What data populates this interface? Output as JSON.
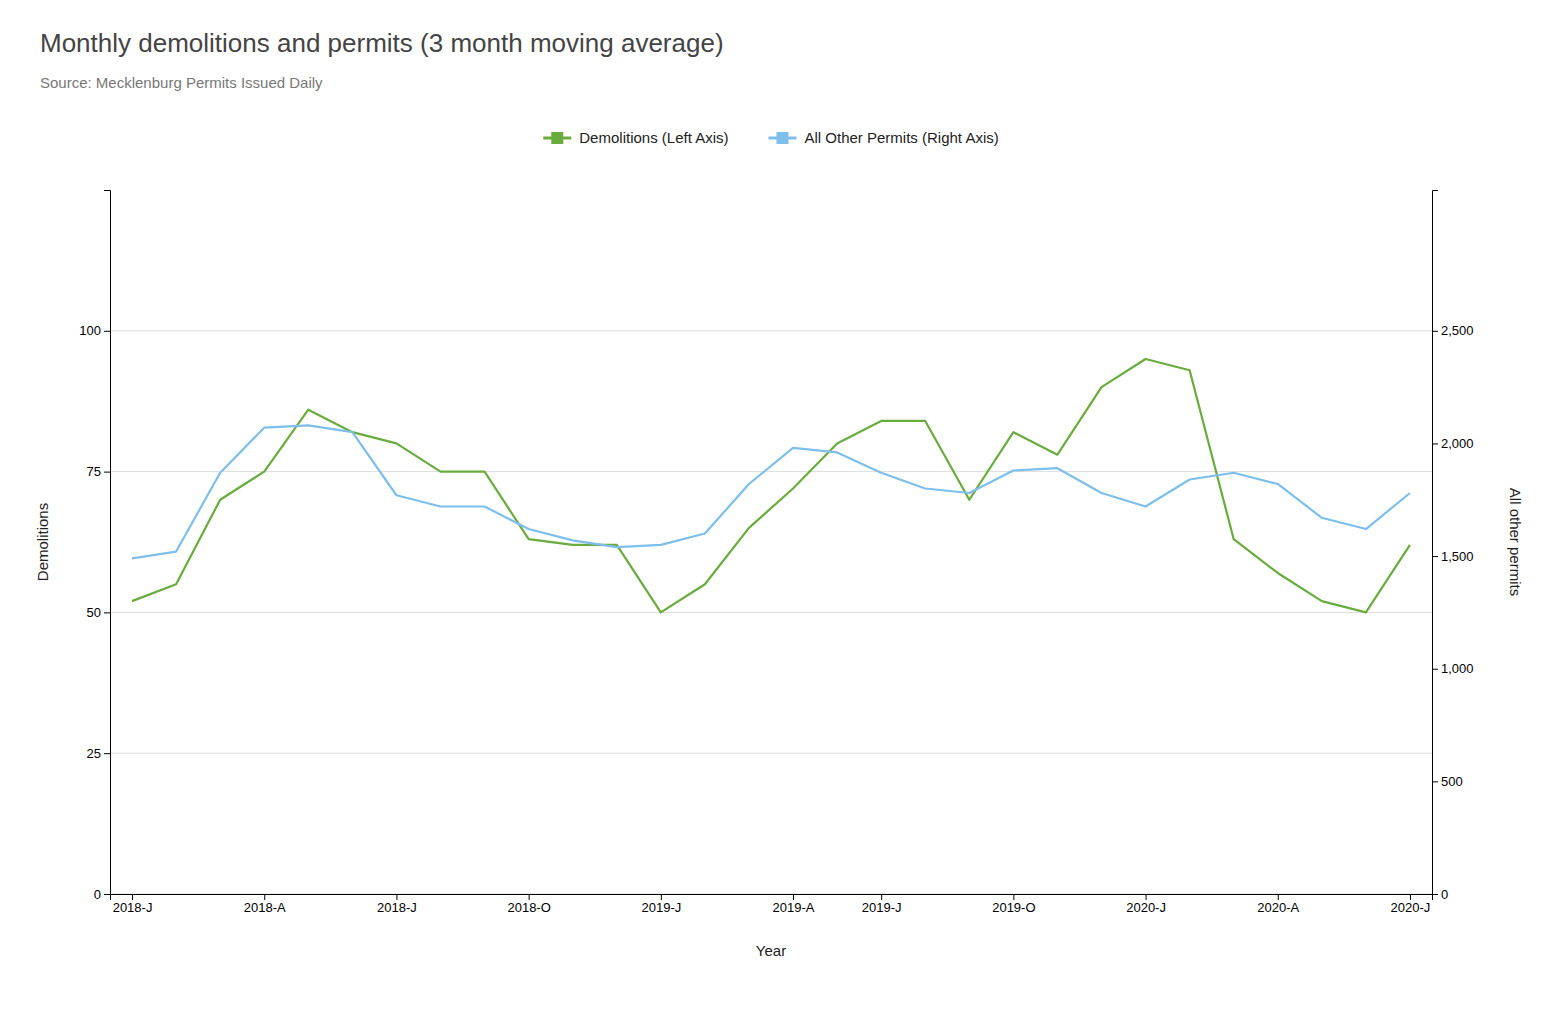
{
  "chart_data": {
    "type": "line",
    "title": "Monthly demolitions and permits (3 month moving average)",
    "subtitle": "Source: Mecklenburg Permits Issued Daily",
    "xlabel": "Year",
    "ylabel": "Demolitions",
    "y2label": "All other permits",
    "categories": [
      "2018-J",
      null,
      null,
      "2018-A",
      null,
      null,
      "2018-J",
      null,
      null,
      "2018-O",
      null,
      null,
      "2019-J",
      null,
      null,
      "2019-A",
      null,
      "2019-J",
      null,
      null,
      "2019-O",
      null,
      null,
      "2020-J",
      null,
      null,
      "2020-A",
      null,
      null,
      "2020-J"
    ],
    "series": [
      {
        "name": "Demolitions (Left Axis)",
        "color": "#6aab3e",
        "axis": "y",
        "values": [
          52,
          55,
          70,
          75,
          86,
          82,
          80,
          75,
          75,
          63,
          62,
          62,
          50,
          55,
          65,
          72,
          80,
          84,
          84,
          70,
          82,
          78,
          90,
          95,
          93,
          63,
          57,
          52,
          50,
          62
        ]
      },
      {
        "name": "All Other Permits (Right Axis)",
        "color": "#7dbfea",
        "axis": "y2",
        "values": [
          1490,
          1520,
          1870,
          2070,
          2080,
          2050,
          1770,
          1720,
          1720,
          1620,
          1570,
          1540,
          1550,
          1600,
          1820,
          1980,
          1960,
          1870,
          1800,
          1780,
          1880,
          1890,
          1780,
          1720,
          1840,
          1870,
          1820,
          1670,
          1620,
          1780
        ]
      }
    ],
    "ylim": [
      0,
      125
    ],
    "yticks": [
      0,
      25,
      50,
      75,
      100
    ],
    "y2lim": [
      0,
      3125
    ],
    "y2ticks": [
      0,
      500,
      {
        "value": 1000,
        "label": "1,000"
      },
      {
        "value": 1500,
        "label": "1,500"
      },
      {
        "value": 2000,
        "label": "2,000"
      },
      {
        "value": 2500,
        "label": "2,500"
      }
    ],
    "grid": true,
    "legend": "top"
  }
}
